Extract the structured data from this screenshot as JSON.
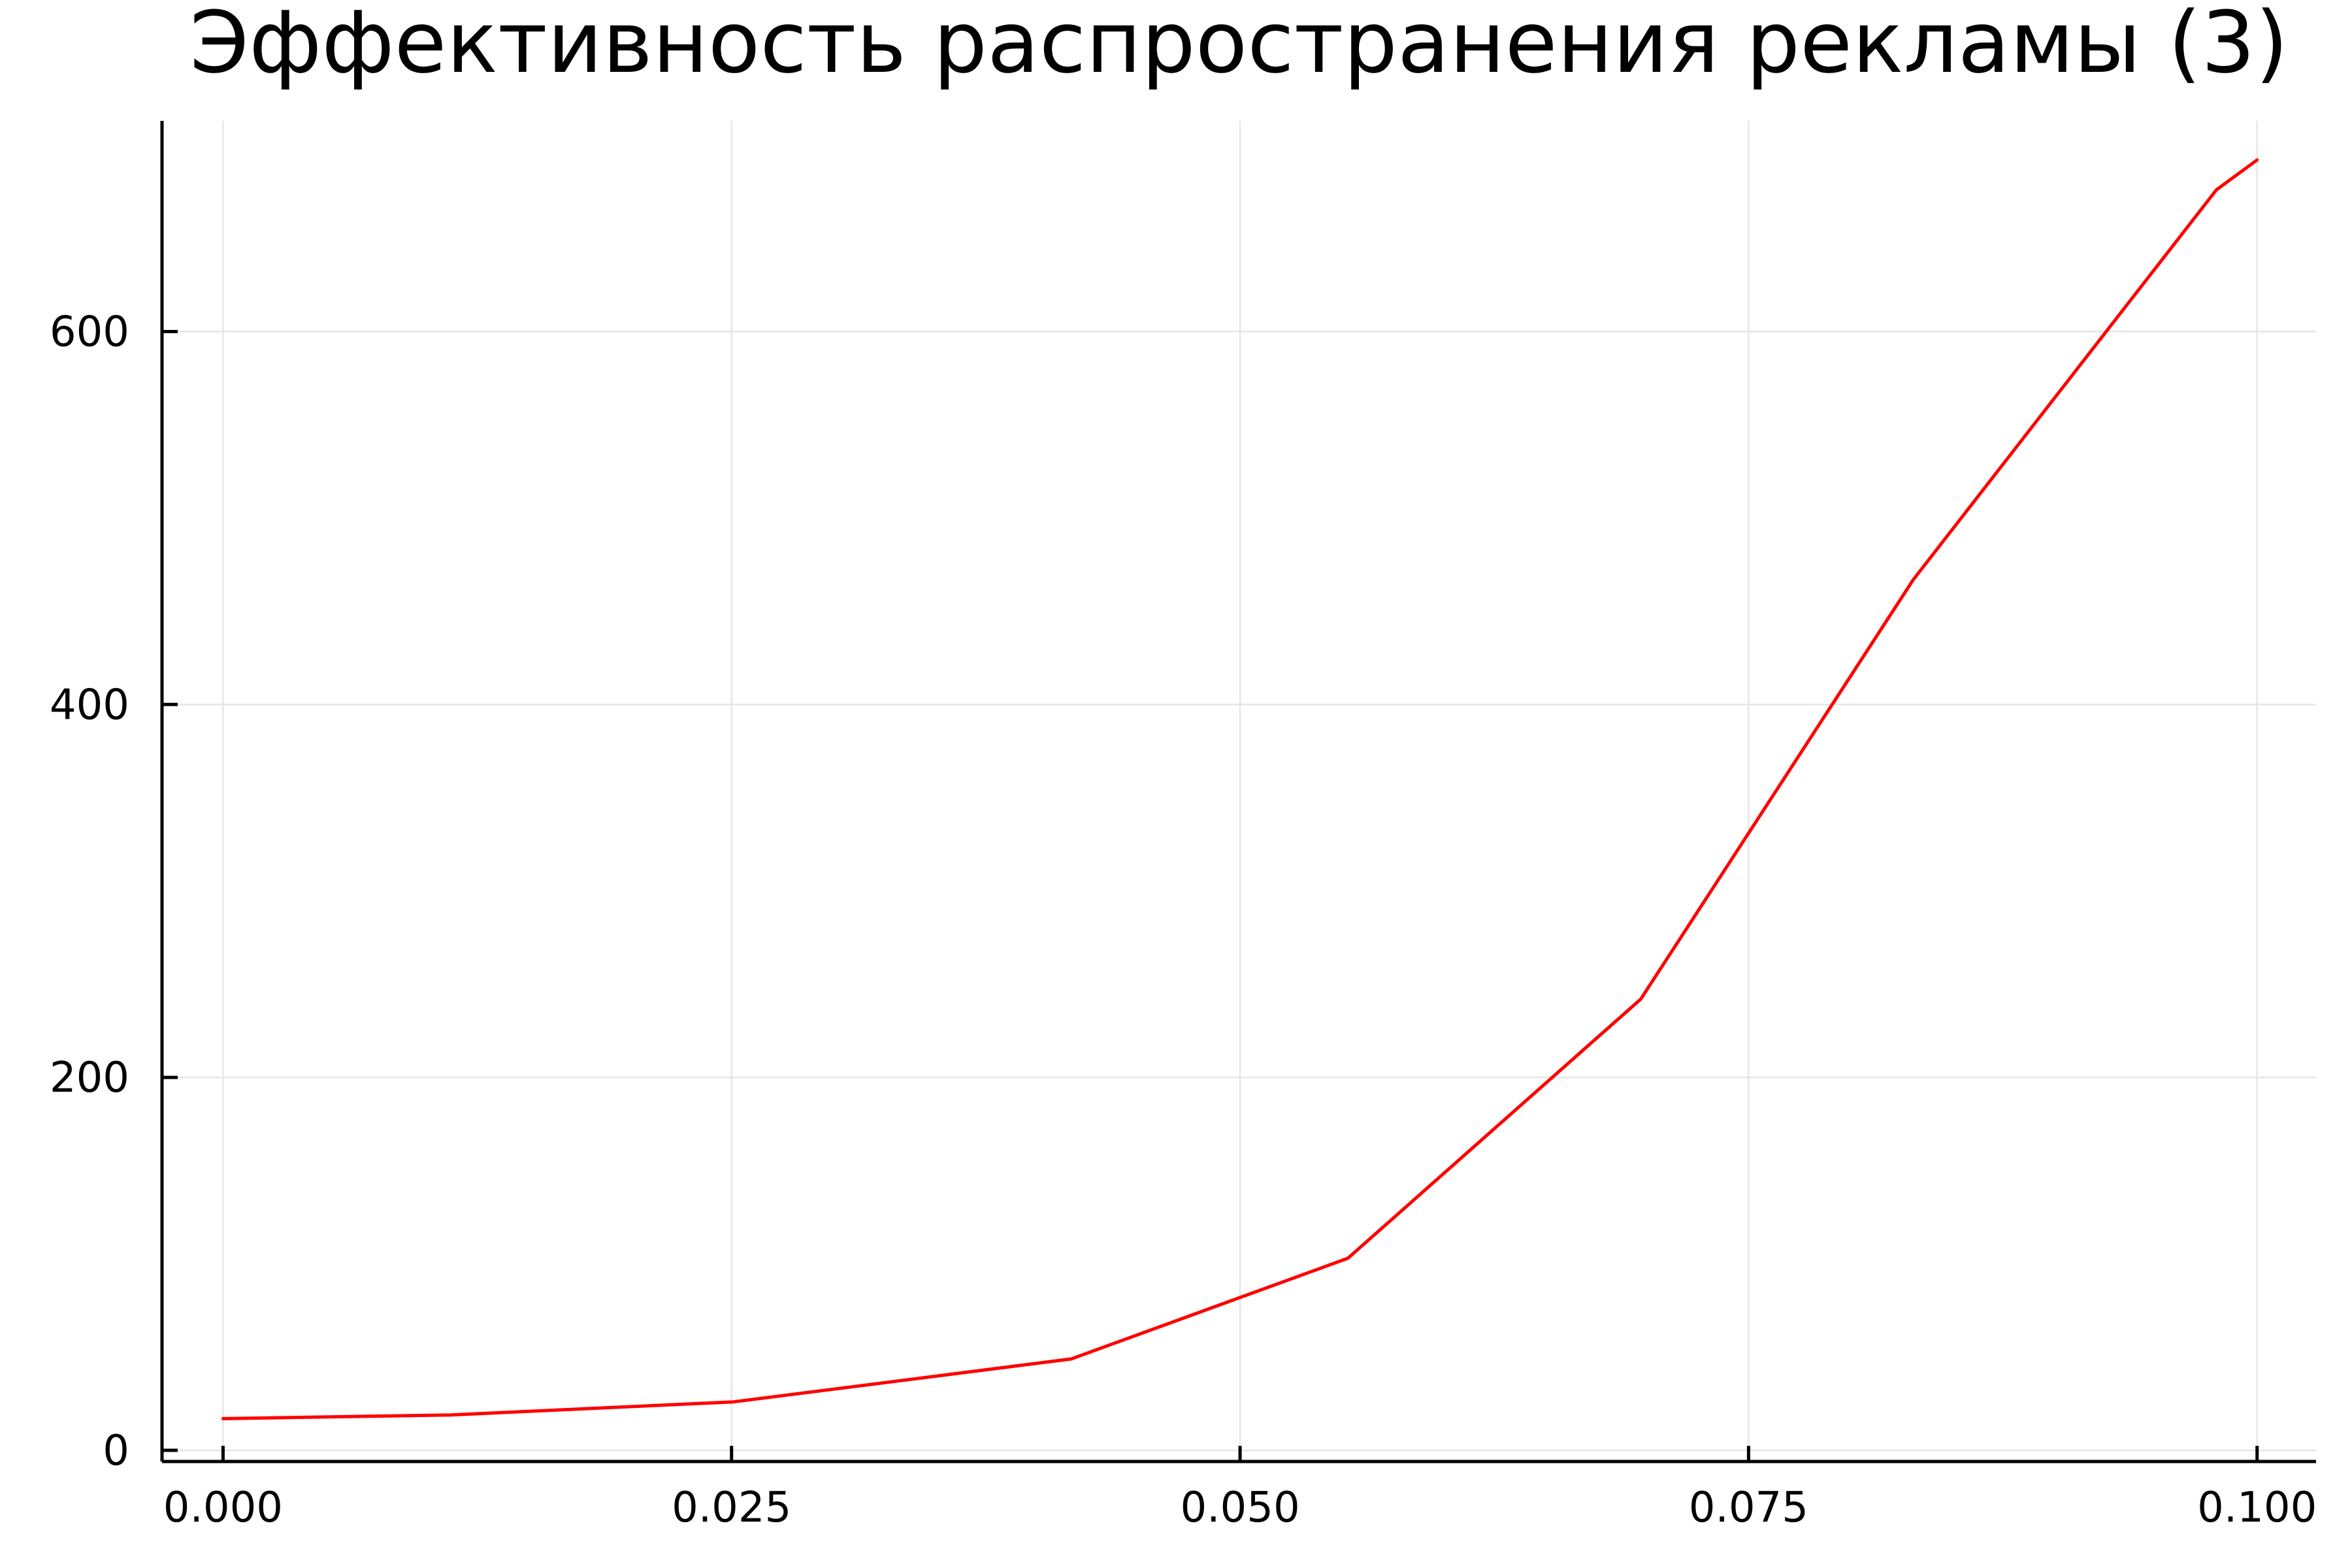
{
  "chart_data": {
    "type": "line",
    "title": "Эффективность распространения рекламы (3)",
    "xlabel": "",
    "ylabel": "",
    "xlim": [
      -0.003,
      0.1029
    ],
    "ylim": [
      -6,
      713
    ],
    "x_ticks": [
      0.0,
      0.025,
      0.05,
      0.075,
      0.1
    ],
    "x_tick_labels": [
      "0.000",
      "0.025",
      "0.050",
      "0.075",
      "0.100"
    ],
    "y_ticks": [
      0,
      200,
      400,
      600
    ],
    "y_tick_labels": [
      "0",
      "200",
      "400",
      "600"
    ],
    "grid": true,
    "legend": "none",
    "series": [
      {
        "color": "#ff0000",
        "x": [
          0.0,
          0.0112,
          0.0251,
          0.0417,
          0.0553,
          0.0697,
          0.0831,
          0.098,
          0.1
        ],
        "y": [
          17,
          19,
          26,
          49,
          103,
          242,
          467,
          676,
          692
        ]
      }
    ]
  }
}
